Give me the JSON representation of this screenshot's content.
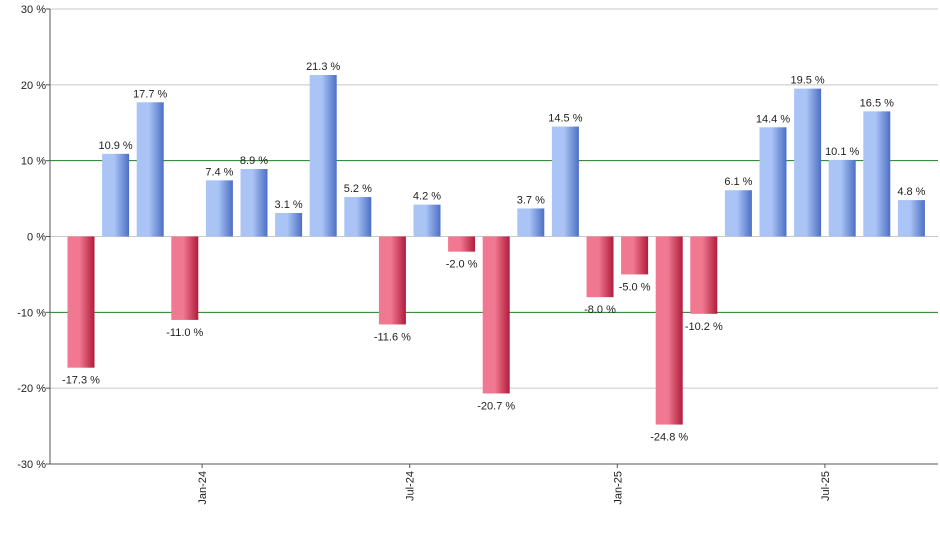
{
  "chart_data": {
    "type": "bar",
    "title": "",
    "xlabel": "",
    "ylabel": "",
    "ylim": [
      -30,
      30
    ],
    "y_ticks": [
      30,
      20,
      10,
      0,
      -10,
      -20,
      -30
    ],
    "y_tick_labels": [
      "30 %",
      "20 %",
      "10 %",
      "0 %",
      "-10 %",
      "-20 %",
      "-30 %"
    ],
    "reference_lines": [
      10,
      -10
    ],
    "x_tick_labels": [
      {
        "label": "Jan-24",
        "after_index": 3
      },
      {
        "label": "Jul-24",
        "after_index": 9
      },
      {
        "label": "Jan-25",
        "after_index": 15
      },
      {
        "label": "Jul-25",
        "after_index": 21
      }
    ],
    "values": [
      -17.3,
      10.9,
      17.7,
      -11.0,
      7.4,
      8.9,
      3.1,
      21.3,
      5.2,
      -11.6,
      4.2,
      -2.0,
      -20.7,
      3.7,
      14.5,
      -8.0,
      -5.0,
      -24.8,
      -10.2,
      6.1,
      14.4,
      19.5,
      10.1,
      16.5,
      4.8
    ],
    "value_labels": [
      "-17.3 %",
      "10.9 %",
      "17.7 %",
      "-11.0 %",
      "7.4 %",
      "8.9 %",
      "3.1 %",
      "21.3 %",
      "5.2 %",
      "-11.6 %",
      "4.2 %",
      "-2.0 %",
      "-20.7 %",
      "3.7 %",
      "14.5 %",
      "-8.0 %",
      "-5.0 %",
      "-24.8 %",
      "-10.2 %",
      "6.1 %",
      "14.4 %",
      "19.5 %",
      "10.1 %",
      "16.5 %",
      "4.8 %"
    ],
    "colors": {
      "positive_light": "#a9c4f5",
      "positive_dark": "#4d6fc4",
      "negative_light": "#f07890",
      "negative_dark": "#b01c3c",
      "grid": "#c8c8c8",
      "reference_line": "#1e7d1e",
      "axis": "#555555"
    }
  }
}
